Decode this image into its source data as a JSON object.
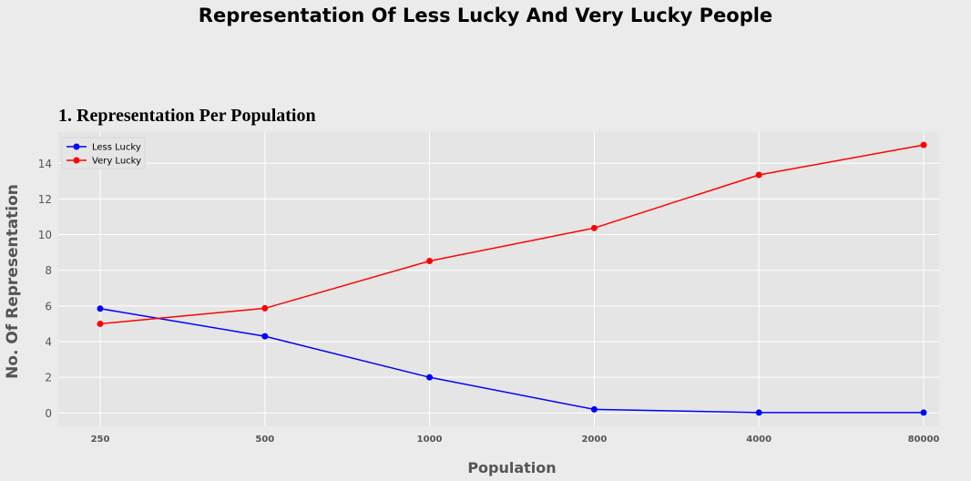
{
  "figure": {
    "suptitle": "Representation Of Less Lucky And Very Lucky People"
  },
  "chart_data": {
    "type": "line",
    "title": "1. Representation Per Population",
    "xlabel": "Population",
    "ylabel": "No. Of Representation",
    "categories": [
      "250",
      "500",
      "1000",
      "2000",
      "4000",
      "80000"
    ],
    "ylim": [
      -0.75,
      15.75
    ],
    "yticks": [
      0,
      2,
      4,
      6,
      8,
      10,
      12,
      14
    ],
    "grid": true,
    "legend_position": "top-left",
    "series": [
      {
        "name": "Less Lucky",
        "color": "#0000ff",
        "values": [
          5.85,
          4.3,
          2.0,
          0.2,
          0.02,
          0.02
        ]
      },
      {
        "name": "Very Lucky",
        "color": "#ff0000",
        "values": [
          5.0,
          5.87,
          8.52,
          10.37,
          13.35,
          15.03
        ]
      }
    ]
  }
}
